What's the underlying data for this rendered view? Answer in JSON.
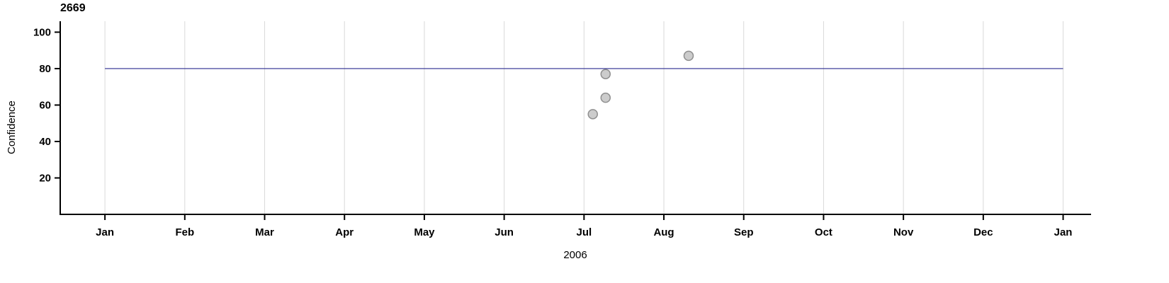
{
  "chart_data": {
    "type": "scatter",
    "title": "2669",
    "xlabel": "2006",
    "ylabel": "Confidence",
    "x_ticks": [
      0,
      1,
      2,
      3,
      4,
      5,
      6,
      7,
      8,
      9,
      10,
      11,
      12
    ],
    "x_tick_labels": [
      "Jan",
      "Feb",
      "Mar",
      "Apr",
      "May",
      "Jun",
      "Jul",
      "Aug",
      "Sep",
      "Oct",
      "Nov",
      "Dec",
      "Jan"
    ],
    "y_ticks": [
      20,
      40,
      60,
      80,
      100
    ],
    "xlim": [
      -0.56,
      12.35
    ],
    "ylim": [
      0,
      106
    ],
    "grid": "vertical-month-gridlines",
    "legend": "none",
    "points": [
      {
        "x": 6.11,
        "y": 55
      },
      {
        "x": 6.27,
        "y": 64
      },
      {
        "x": 6.27,
        "y": 77
      },
      {
        "x": 7.31,
        "y": 87
      }
    ],
    "reference_line": {
      "y": 80,
      "x_start": 0,
      "x_end": 12
    },
    "colors": {
      "point_fill": "#cccccc",
      "point_stroke": "#8f8f8f",
      "reference_line": "#2b2b8f",
      "gridline": "#d9d9d9",
      "axis": "#000000",
      "text": "#000000"
    }
  }
}
